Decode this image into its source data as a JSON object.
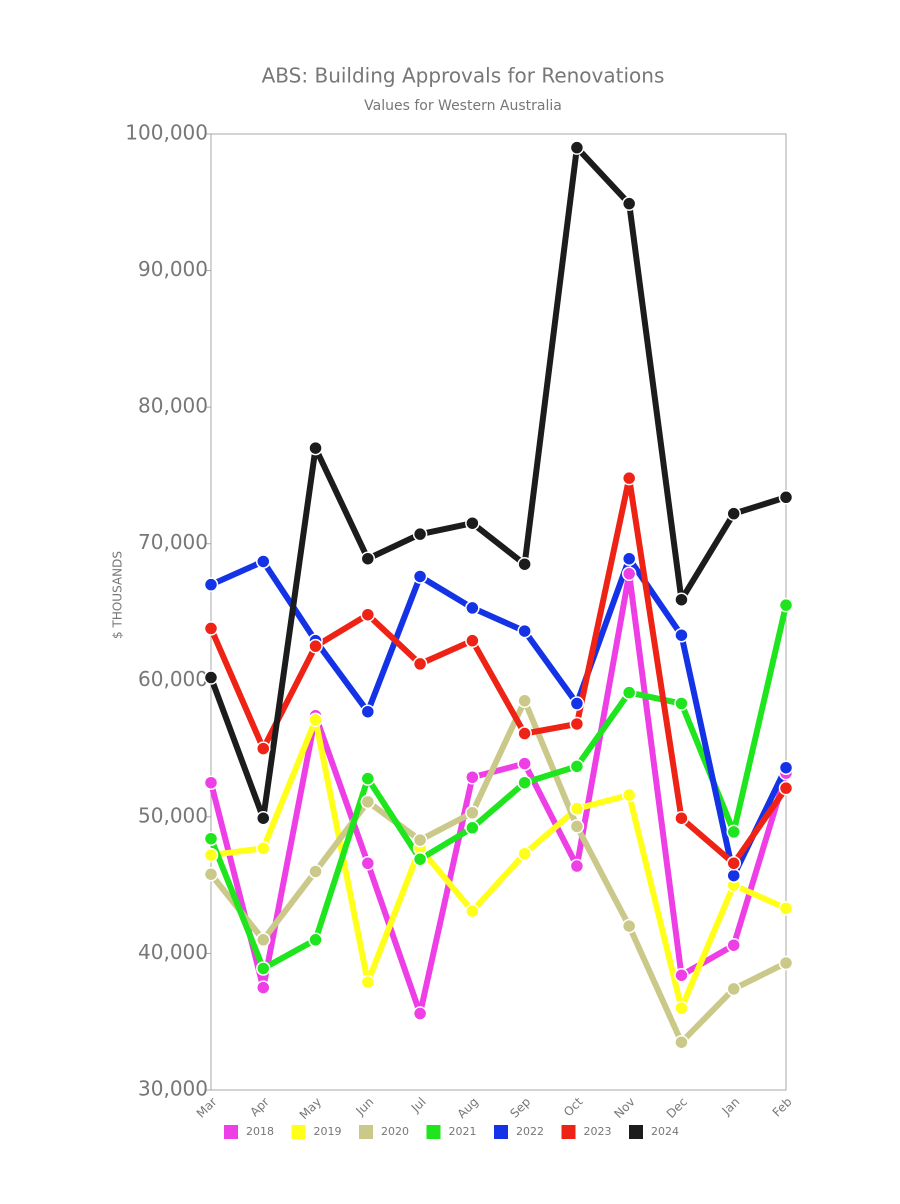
{
  "chart_data": {
    "type": "line",
    "title": "ABS: Building Approvals for Renovations",
    "subtitle": "Values for Western Australia",
    "y_label": "$ THOUSANDS",
    "categories": [
      "Mar",
      "Apr",
      "May",
      "Jun",
      "Jul",
      "Aug",
      "Sep",
      "Oct",
      "Nov",
      "Dec",
      "Jan",
      "Feb"
    ],
    "ylim": [
      30000,
      100000
    ],
    "yticks": [
      {
        "value": 30000,
        "label": "30,000"
      },
      {
        "value": 40000,
        "label": "40,000"
      },
      {
        "value": 50000,
        "label": "50,000"
      },
      {
        "value": 60000,
        "label": "60,000"
      },
      {
        "value": 70000,
        "label": "70,000"
      },
      {
        "value": 80000,
        "label": "80,000"
      },
      {
        "value": 90000,
        "label": "90,000"
      },
      {
        "value": 100000,
        "label": "100,000"
      }
    ],
    "legend": "bottom",
    "series": [
      {
        "name": "2018",
        "color": "#ee3fe6",
        "values": [
          52500,
          37500,
          57400,
          46600,
          35600,
          52900,
          53900,
          46400,
          67800,
          38400,
          40600,
          53200
        ]
      },
      {
        "name": "2019",
        "color": "#ffff1a",
        "values": [
          47200,
          47700,
          57100,
          37900,
          47700,
          43100,
          47300,
          50600,
          51600,
          36000,
          45000,
          43300
        ]
      },
      {
        "name": "2020",
        "color": "#cbc98a",
        "values": [
          45800,
          41000,
          46000,
          51100,
          48300,
          50300,
          58500,
          49300,
          42000,
          33500,
          37400,
          39300
        ]
      },
      {
        "name": "2021",
        "color": "#1ee51e",
        "values": [
          48400,
          38900,
          41000,
          52800,
          46900,
          49200,
          52500,
          53700,
          59100,
          58300,
          48900,
          65500
        ]
      },
      {
        "name": "2022",
        "color": "#1433e6",
        "values": [
          67000,
          68700,
          62900,
          57700,
          67600,
          65300,
          63600,
          58300,
          68900,
          63300,
          45700,
          53600
        ]
      },
      {
        "name": "2023",
        "color": "#ee2315",
        "values": [
          63800,
          55000,
          62500,
          64800,
          61200,
          62900,
          56100,
          56800,
          74800,
          49900,
          46600,
          52100
        ]
      },
      {
        "name": "2024",
        "color": "#1c1c1c",
        "values": [
          60200,
          49900,
          77000,
          68900,
          70700,
          71500,
          68500,
          99000,
          94900,
          65900,
          72200,
          73400
        ]
      }
    ]
  }
}
